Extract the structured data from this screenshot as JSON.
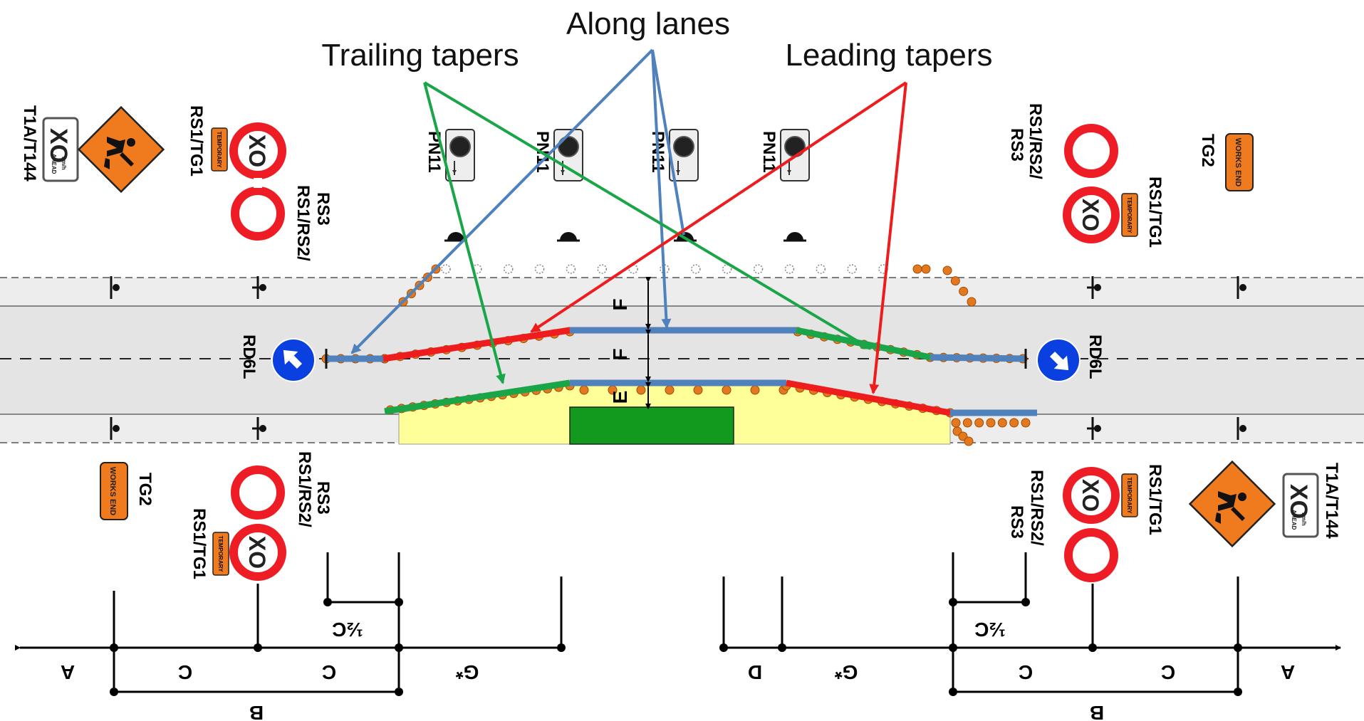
{
  "callouts": {
    "along_lanes": "Along lanes",
    "trailing_tapers": "Trailing tapers",
    "leading_tapers": "Leading tapers"
  },
  "sign_labels": {
    "t1a_t144": "T1A/T144",
    "rs1_tg1": "RS1/TG1",
    "rs1_rs2": "RS1/RS2/",
    "rs3": "RS3",
    "pn11": "PN11",
    "tg2": "TG2",
    "rd6l": "RD6L"
  },
  "sign_text": {
    "speed": "XO",
    "kmh": "km/h",
    "ahead": "AHEAD",
    "temporary": "TEMPORARY",
    "works_end": "WORKS END"
  },
  "dimensions": {
    "a": "A",
    "b": "B",
    "c": "C",
    "d": "D",
    "half_c": "½C",
    "g_star": "G*",
    "e": "E",
    "f": "F"
  },
  "colors": {
    "along_lanes": "#4f81bd",
    "trailing_tapers": "#1aa648",
    "leading_tapers": "#ee1c1c",
    "cone": "#e3781e",
    "work_area": "#ffff99",
    "work_zone": "#119a1e",
    "road": "#e8e8e8",
    "sign_red": "#ee1c24",
    "sign_orange": "#f07a1e",
    "sign_blue": "#0a3fe0"
  }
}
